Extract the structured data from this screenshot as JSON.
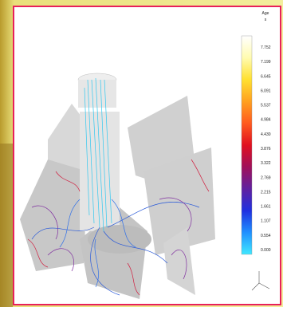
{
  "legend": {
    "title": "Age",
    "unit": "s",
    "labels": [
      "7.752",
      "7.199",
      "6.645",
      "6.091",
      "5.537",
      "4.984",
      "4.430",
      "3.876",
      "3.322",
      "2.769",
      "2.215",
      "1.661",
      "1.107",
      "0.554",
      "0.000"
    ]
  }
}
